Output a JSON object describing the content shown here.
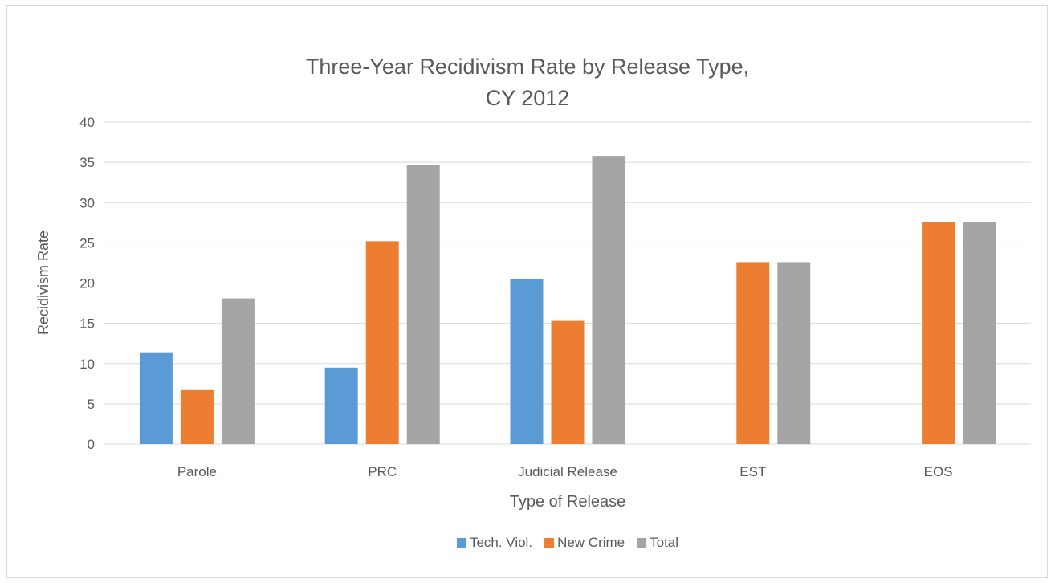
{
  "chart_data": {
    "type": "bar",
    "title_line1": "Three-Year Recidivism Rate by Release Type,",
    "title_line2": "CY 2012",
    "xlabel": "Type of Release",
    "ylabel": "Recidivism Rate",
    "categories": [
      "Parole",
      "PRC",
      "Judicial Release",
      "EST",
      "EOS"
    ],
    "series": [
      {
        "name": "Tech. Viol.",
        "color": "#5b9bd5",
        "values": [
          11.4,
          9.5,
          20.5,
          null,
          null
        ]
      },
      {
        "name": "New Crime",
        "color": "#ed7d31",
        "values": [
          6.7,
          25.2,
          15.3,
          22.6,
          27.6
        ]
      },
      {
        "name": "Total",
        "color": "#a5a5a5",
        "values": [
          18.1,
          34.7,
          35.8,
          22.6,
          27.6
        ]
      }
    ],
    "ylim": [
      0,
      40
    ],
    "yticks": [
      0,
      5,
      10,
      15,
      20,
      25,
      30,
      35,
      40
    ],
    "grid": true,
    "legend_position": "bottom"
  }
}
